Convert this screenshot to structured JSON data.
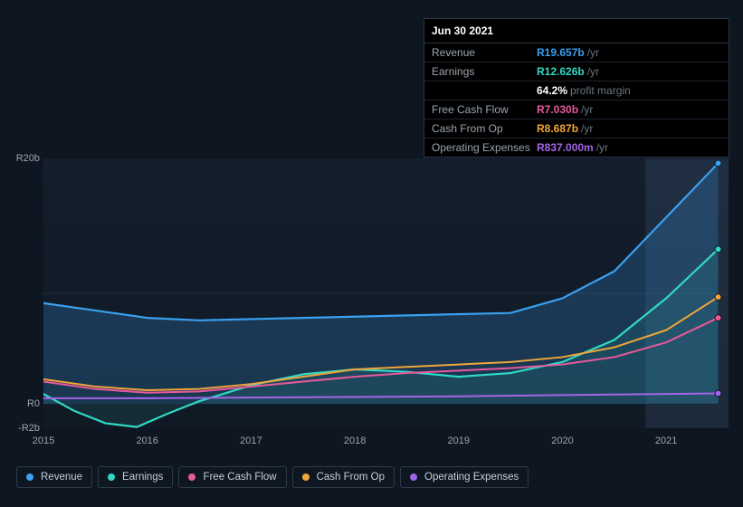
{
  "tooltip": {
    "date": "Jun 30 2021",
    "rows": [
      {
        "label": "Revenue",
        "value": "R19.657b",
        "unit": "/yr",
        "color": "#3aa0f0"
      },
      {
        "label": "Earnings",
        "value": "R12.626b",
        "unit": "/yr",
        "color": "#2fd9c4"
      },
      {
        "label": "",
        "value": "64.2%",
        "unit": "profit margin",
        "color": "#ffffff"
      },
      {
        "label": "Free Cash Flow",
        "value": "R7.030b",
        "unit": "/yr",
        "color": "#e85a9b"
      },
      {
        "label": "Cash From Op",
        "value": "R8.687b",
        "unit": "/yr",
        "color": "#f0a53a"
      },
      {
        "label": "Operating Expenses",
        "value": "R837.000m",
        "unit": "/yr",
        "color": "#a265e8"
      }
    ]
  },
  "chart": {
    "type": "line-area",
    "background_color": "#0e1621",
    "grid_color": "#1c2836",
    "highlight_band": {
      "x_start": 5.8,
      "x_end": 6.6,
      "fill": "rgba(90,120,160,0.18)"
    },
    "x": {
      "min": 0,
      "max": 6.6,
      "ticks": [
        0,
        1,
        2,
        3,
        4,
        5,
        6
      ],
      "tick_labels": [
        "2015",
        "2016",
        "2017",
        "2018",
        "2019",
        "2020",
        "2021"
      ]
    },
    "y": {
      "min": -2,
      "max": 20,
      "ticks": [
        -2,
        0,
        20
      ],
      "tick_labels": [
        "-R2b",
        "R0",
        "R20b"
      ],
      "zero_line": 0
    },
    "series": [
      {
        "name": "Revenue",
        "color": "#3aa0f0",
        "line_width": 2.2,
        "area": true,
        "area_opacity": 0.22,
        "points": [
          [
            0,
            8.2
          ],
          [
            0.5,
            7.6
          ],
          [
            1,
            7.0
          ],
          [
            1.5,
            6.8
          ],
          [
            2,
            6.9
          ],
          [
            2.5,
            7.0
          ],
          [
            3,
            7.1
          ],
          [
            3.5,
            7.2
          ],
          [
            4,
            7.3
          ],
          [
            4.5,
            7.4
          ],
          [
            5,
            8.6
          ],
          [
            5.5,
            10.8
          ],
          [
            6,
            15.2
          ],
          [
            6.5,
            19.6
          ]
        ]
      },
      {
        "name": "Earnings",
        "color": "#2fd9c4",
        "line_width": 2.2,
        "area": true,
        "area_opacity": 0.1,
        "points": [
          [
            0,
            0.8
          ],
          [
            0.3,
            -0.6
          ],
          [
            0.6,
            -1.6
          ],
          [
            0.9,
            -1.9
          ],
          [
            1.2,
            -0.8
          ],
          [
            1.5,
            0.2
          ],
          [
            2,
            1.5
          ],
          [
            2.5,
            2.4
          ],
          [
            3,
            2.8
          ],
          [
            3.5,
            2.6
          ],
          [
            4,
            2.2
          ],
          [
            4.5,
            2.5
          ],
          [
            5,
            3.4
          ],
          [
            5.5,
            5.2
          ],
          [
            6,
            8.6
          ],
          [
            6.5,
            12.6
          ]
        ]
      },
      {
        "name": "Free Cash Flow",
        "color": "#e85a9b",
        "line_width": 2.0,
        "area": false,
        "points": [
          [
            0,
            1.8
          ],
          [
            0.5,
            1.2
          ],
          [
            1,
            0.9
          ],
          [
            1.5,
            1.0
          ],
          [
            2,
            1.4
          ],
          [
            2.5,
            1.8
          ],
          [
            3,
            2.2
          ],
          [
            3.5,
            2.5
          ],
          [
            4,
            2.7
          ],
          [
            4.5,
            2.9
          ],
          [
            5,
            3.2
          ],
          [
            5.5,
            3.8
          ],
          [
            6,
            5.0
          ],
          [
            6.5,
            7.0
          ]
        ]
      },
      {
        "name": "Cash From Op",
        "color": "#f0a53a",
        "line_width": 2.0,
        "area": false,
        "points": [
          [
            0,
            2.0
          ],
          [
            0.5,
            1.4
          ],
          [
            1,
            1.1
          ],
          [
            1.5,
            1.2
          ],
          [
            2,
            1.6
          ],
          [
            2.5,
            2.2
          ],
          [
            3,
            2.8
          ],
          [
            3.5,
            3.0
          ],
          [
            4,
            3.2
          ],
          [
            4.5,
            3.4
          ],
          [
            5,
            3.8
          ],
          [
            5.5,
            4.6
          ],
          [
            6,
            6.0
          ],
          [
            6.5,
            8.7
          ]
        ]
      },
      {
        "name": "Operating Expenses",
        "color": "#a265e8",
        "line_width": 2.0,
        "area": false,
        "points": [
          [
            0,
            0.45
          ],
          [
            1,
            0.45
          ],
          [
            2,
            0.5
          ],
          [
            3,
            0.55
          ],
          [
            4,
            0.6
          ],
          [
            5,
            0.7
          ],
          [
            6,
            0.8
          ],
          [
            6.5,
            0.84
          ]
        ]
      }
    ]
  },
  "legend": [
    {
      "label": "Revenue",
      "color": "#3aa0f0"
    },
    {
      "label": "Earnings",
      "color": "#2fd9c4"
    },
    {
      "label": "Free Cash Flow",
      "color": "#e85a9b"
    },
    {
      "label": "Cash From Op",
      "color": "#f0a53a"
    },
    {
      "label": "Operating Expenses",
      "color": "#a265e8"
    }
  ]
}
